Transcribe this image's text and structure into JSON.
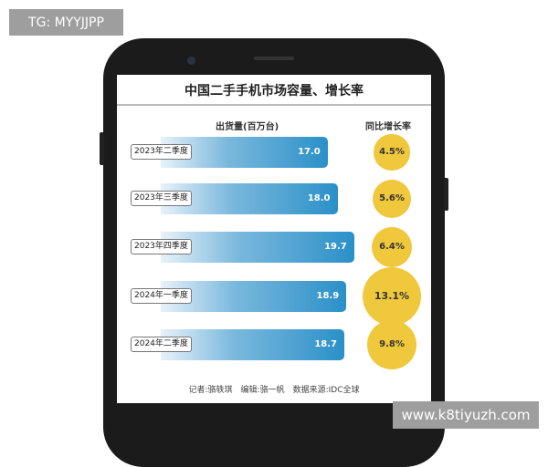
{
  "watermark_top": "TG: MYYJJPP",
  "watermark_bottom": "www.k8tiyuzh.com",
  "chart_data": {
    "type": "bar",
    "title": "中国二手手机市场容量、增长率",
    "bar_header": "出货量(百万台)",
    "growth_header": "同比增长率",
    "categories": [
      "2023年二季度",
      "2023年三季度",
      "2023年四季度",
      "2024年一季度",
      "2024年二季度"
    ],
    "values": [
      17.0,
      18.0,
      19.7,
      18.9,
      18.7
    ],
    "value_labels": [
      "17.0",
      "18.0",
      "19.7",
      "18.9",
      "18.7"
    ],
    "growth": [
      4.5,
      5.6,
      6.4,
      13.1,
      9.8
    ],
    "growth_labels": [
      "4.5%",
      "5.6%",
      "6.4%",
      "13.1%",
      "9.8%"
    ],
    "bar_color": "#2a90c8",
    "circle_color": "#f0c83c"
  },
  "footer": "记者:骆轶琪　编辑:骆一帆　数据来源:IDC全球"
}
